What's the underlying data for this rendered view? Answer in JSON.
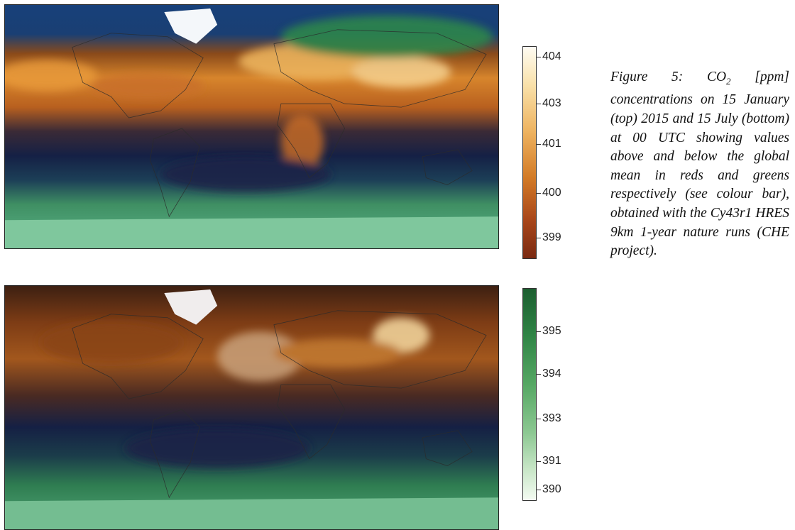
{
  "maps": {
    "top": {
      "name": "15 January 2015 00 UTC"
    },
    "bottom": {
      "name": "15 July 2015 00 UTC"
    }
  },
  "colorbar_top": {
    "ticks": [
      "404",
      "403",
      "401",
      "400",
      "399"
    ],
    "colors": [
      "#fefcf3",
      "#f9e1aa",
      "#eeb360",
      "#d27a26",
      "#a8461a",
      "#7a2a12"
    ]
  },
  "colorbar_bottom": {
    "ticks": [
      "395",
      "394",
      "393",
      "391",
      "390"
    ],
    "colors": [
      "#1c5e30",
      "#2f8445",
      "#55a763",
      "#8cc892",
      "#cae7c9",
      "#f4fbf2"
    ]
  },
  "caption": {
    "prefix": "Figure 5:  CO",
    "subscript": "2",
    "rest": " [ppm] concentrations on 15 January (top) 2015 and 15 July (bottom) at 00 UTC showing values above and below the global mean in reds and greens respectively (see colour bar), obtained with the Cy43r1 HRES 9km 1-year nature runs (CHE project)."
  }
}
